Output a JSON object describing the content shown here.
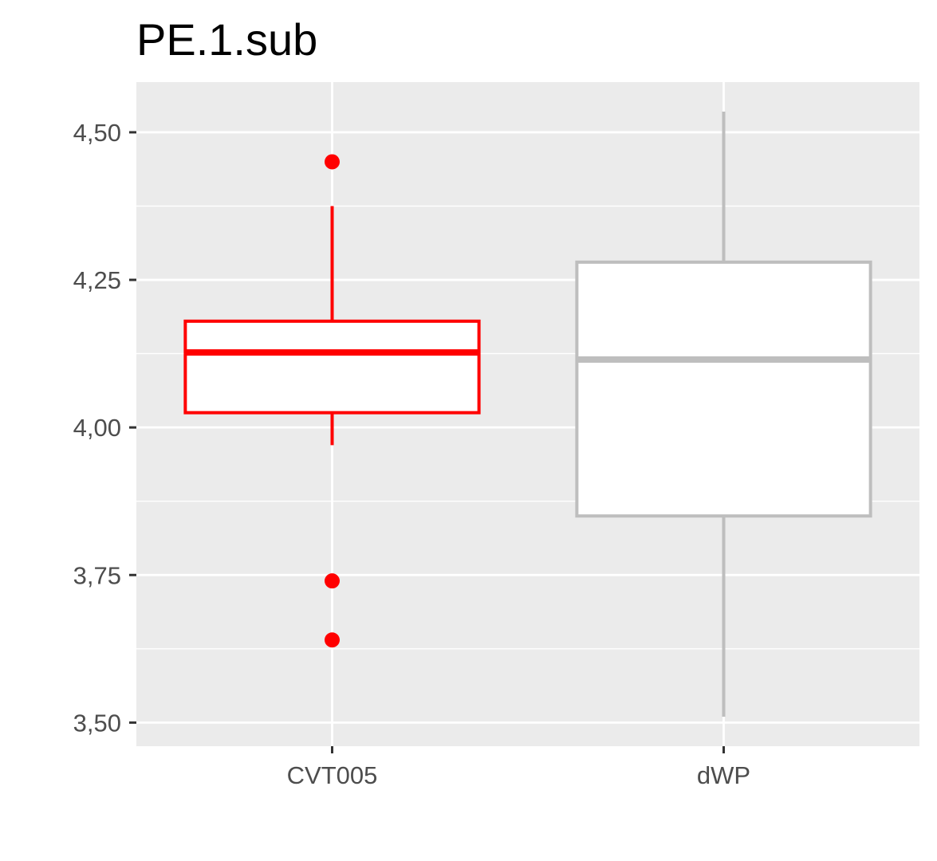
{
  "chart_data": {
    "type": "box",
    "title": "PE.1.sub",
    "xlabel": "",
    "ylabel": "",
    "ylim": [
      3.46,
      4.585
    ],
    "y_ticks": [
      {
        "value": 3.5,
        "label": "3,50"
      },
      {
        "value": 3.75,
        "label": "3,75"
      },
      {
        "value": 4.0,
        "label": "4,00"
      },
      {
        "value": 4.25,
        "label": "4,25"
      },
      {
        "value": 4.5,
        "label": "4,50"
      }
    ],
    "y_minor_ticks": [
      3.625,
      3.875,
      4.125,
      4.375
    ],
    "categories": [
      "CVT005",
      "dWP"
    ],
    "grid": true,
    "legend": "none",
    "colors": {
      "panel_background": "#ebebeb",
      "grid": "#ffffff",
      "axis_text": "#4d4d4d",
      "tick": "#333333"
    },
    "boxes": [
      {
        "category": "CVT005",
        "color": "#ff0000",
        "fill": "#ffffff",
        "whisker_low": 3.97,
        "q1": 4.025,
        "median": 4.127,
        "q3": 4.18,
        "whisker_high": 4.375,
        "outliers": [
          4.45,
          3.74,
          3.64
        ]
      },
      {
        "category": "dWP",
        "color": "#bebebe",
        "fill": "#ffffff",
        "whisker_low": 3.51,
        "q1": 3.85,
        "median": 4.115,
        "q3": 4.28,
        "whisker_high": 4.535,
        "outliers": []
      }
    ]
  }
}
